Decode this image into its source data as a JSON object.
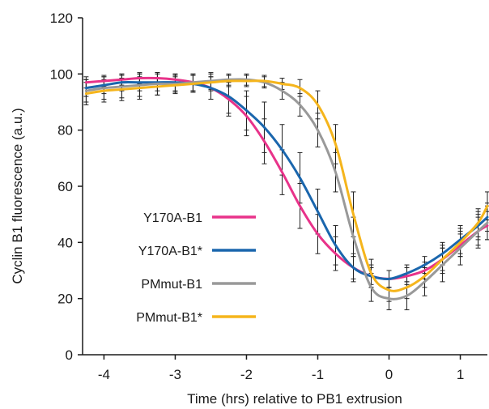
{
  "chart_data": {
    "type": "line",
    "title": "",
    "xlabel": "Time (hrs) relative to PB1 extrusion",
    "ylabel": "Cyclin B1 fluorescence (a.u.)",
    "xlim": [
      -4.3,
      1.38
    ],
    "ylim": [
      0,
      120
    ],
    "xticks": [
      -4,
      -3,
      -2,
      -1,
      0,
      1
    ],
    "xtick_labels": [
      "-4",
      "-3",
      "-2",
      "-1",
      "0",
      "1"
    ],
    "yticks": [
      0,
      20,
      40,
      60,
      80,
      100,
      120
    ],
    "ytick_labels": [
      "0",
      "20",
      "40",
      "60",
      "80",
      "100",
      "120"
    ],
    "grid": false,
    "legend_position": "center-left",
    "x": [
      -4.25,
      -4.0,
      -3.75,
      -3.5,
      -3.25,
      -3.0,
      -2.75,
      -2.5,
      -2.25,
      -2.0,
      -1.75,
      -1.5,
      -1.25,
      -1.0,
      -0.75,
      -0.5,
      -0.25,
      0.0,
      0.25,
      0.5,
      0.75,
      1.0,
      1.25,
      1.38
    ],
    "series": [
      {
        "name": "Y170A-B1",
        "color": "#e8338a",
        "values": [
          97,
          97.5,
          98,
          98.5,
          98.5,
          98,
          97,
          95,
          91,
          85,
          76,
          65,
          53,
          43,
          36,
          31,
          28,
          27,
          28,
          30,
          34,
          39,
          44,
          46
        ],
        "error": [
          2,
          2,
          2,
          2,
          2,
          2,
          3,
          4,
          6,
          7,
          8,
          8,
          8,
          7,
          6,
          4,
          3,
          3,
          3,
          3,
          4,
          4,
          5,
          5
        ]
      },
      {
        "name": "Y170A-B1*",
        "color": "#1a66ad",
        "values": [
          95,
          96,
          97,
          97,
          97,
          97,
          96.5,
          95,
          92,
          87,
          81,
          73,
          63,
          51,
          39,
          31,
          28,
          27,
          29,
          32,
          36,
          41,
          46,
          49
        ],
        "error": [
          3,
          3,
          3,
          3,
          3,
          3,
          3,
          4,
          6,
          7,
          9,
          9,
          9,
          8,
          7,
          5,
          4,
          3,
          3,
          3,
          4,
          5,
          5,
          5
        ]
      },
      {
        "name": "PMmut-B1",
        "color": "#999999",
        "values": [
          94,
          95,
          95.5,
          96,
          96.5,
          96.5,
          97,
          97.5,
          98,
          98,
          97,
          94,
          89,
          80,
          65,
          42,
          24,
          20,
          21,
          26,
          32,
          38,
          44,
          47
        ],
        "error": [
          4,
          4,
          4,
          4,
          4,
          3,
          3,
          3,
          2,
          2,
          2,
          3,
          4,
          6,
          7,
          7,
          5,
          4,
          5,
          5,
          6,
          6,
          6,
          6
        ]
      },
      {
        "name": "PMmut-B1*",
        "color": "#f5b51c",
        "values": [
          93,
          94,
          94.5,
          95,
          95.5,
          96,
          96.5,
          97,
          97.5,
          97.5,
          97.5,
          96.5,
          95,
          89,
          75,
          50,
          29,
          23,
          24,
          28,
          34,
          40,
          47,
          53
        ],
        "error": [
          4,
          4,
          4,
          4,
          3,
          3,
          3,
          3,
          2,
          2,
          2,
          2,
          3,
          5,
          7,
          8,
          5,
          4,
          4,
          4,
          5,
          5,
          5,
          5
        ]
      }
    ]
  }
}
